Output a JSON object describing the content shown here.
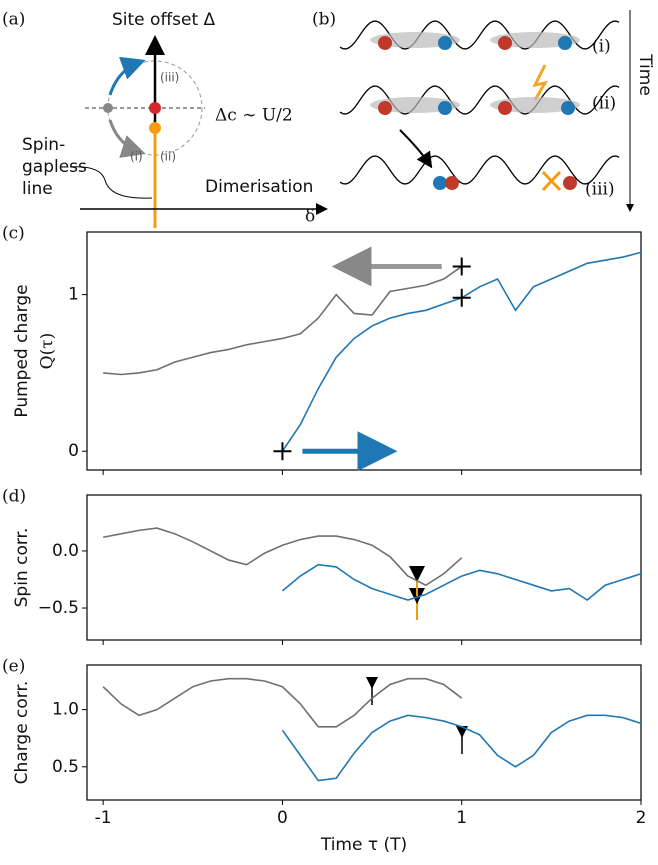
{
  "diagram_a": {
    "label": "(a)",
    "y_axis": "Site offset Δ",
    "point_iii": "(iii)",
    "delta_c": "Δc ∼ U/2",
    "line1": "Spin-",
    "line2": "gapless",
    "line3": "line",
    "point_i": "(i)",
    "point_ii": "(ii)",
    "x_axis": "Dimerisation",
    "x_symbol": "δ"
  },
  "diagram_b": {
    "label": "(b)",
    "row1": "(i)",
    "row2": "(ii)",
    "row3": "(iii)",
    "time": "Time"
  },
  "chart_data": [
    {
      "type": "line",
      "panel_label": "(c)",
      "ylabel": "Pumped charge",
      "ylabel2": "Q(τ)",
      "xlim": [
        -1.09,
        2
      ],
      "xticks": [
        -1,
        0,
        1,
        2
      ],
      "ylim": [
        -0.12,
        1.4
      ],
      "yticks": [
        0,
        1
      ],
      "series": [
        {
          "color": "#707070",
          "x": [
            -1,
            -0.9,
            -0.8,
            -0.7,
            -0.6,
            -0.5,
            -0.4,
            -0.3,
            -0.2,
            -0.1,
            0,
            0.1,
            0.2,
            0.3,
            0.4,
            0.5,
            0.6,
            0.7,
            0.8,
            0.9,
            1
          ],
          "values": [
            0.5,
            0.49,
            0.5,
            0.52,
            0.57,
            0.6,
            0.63,
            0.65,
            0.68,
            0.7,
            0.72,
            0.75,
            0.85,
            1.0,
            0.88,
            0.87,
            1.02,
            1.04,
            1.06,
            1.1,
            1.18
          ]
        },
        {
          "color": "#1f77b4",
          "x": [
            0,
            0.1,
            0.2,
            0.3,
            0.4,
            0.5,
            0.6,
            0.7,
            0.8,
            0.9,
            1,
            1.1,
            1.2,
            1.3,
            1.4,
            1.5,
            1.6,
            1.7,
            1.8,
            1.9,
            2
          ],
          "values": [
            0,
            0.17,
            0.4,
            0.6,
            0.72,
            0.8,
            0.85,
            0.88,
            0.9,
            0.94,
            0.98,
            1.05,
            1.1,
            0.9,
            1.05,
            1.1,
            1.15,
            1.2,
            1.22,
            1.24,
            1.27
          ]
        }
      ]
    },
    {
      "type": "line",
      "panel_label": "(d)",
      "ylabel": "Spin corr.",
      "xlim": [
        -1.09,
        2
      ],
      "xticks": [
        -1,
        0,
        1,
        2
      ],
      "ylim": [
        -0.78,
        0.49
      ],
      "yticks": [
        {
          "value": 0,
          "label": "0.0"
        },
        {
          "value": -0.5,
          "label": "−0.5"
        }
      ],
      "series": [
        {
          "color": "#707070",
          "x": [
            -1,
            -0.9,
            -0.8,
            -0.7,
            -0.6,
            -0.5,
            -0.4,
            -0.3,
            -0.2,
            -0.1,
            0,
            0.1,
            0.2,
            0.3,
            0.4,
            0.5,
            0.6,
            0.7,
            0.8,
            0.9,
            1
          ],
          "values": [
            0.12,
            0.15,
            0.18,
            0.2,
            0.15,
            0.08,
            0.0,
            -0.08,
            -0.12,
            -0.02,
            0.05,
            0.1,
            0.13,
            0.13,
            0.1,
            0.05,
            -0.05,
            -0.22,
            -0.3,
            -0.2,
            -0.06
          ]
        },
        {
          "color": "#1f77b4",
          "x": [
            0,
            0.1,
            0.2,
            0.3,
            0.4,
            0.5,
            0.6,
            0.7,
            0.8,
            0.9,
            1,
            1.1,
            1.2,
            1.3,
            1.4,
            1.5,
            1.6,
            1.7,
            1.8,
            1.9,
            2
          ],
          "values": [
            -0.35,
            -0.22,
            -0.12,
            -0.14,
            -0.25,
            -0.33,
            -0.38,
            -0.43,
            -0.38,
            -0.3,
            -0.22,
            -0.17,
            -0.2,
            -0.25,
            -0.3,
            -0.35,
            -0.33,
            -0.43,
            -0.3,
            -0.25,
            -0.2
          ]
        }
      ]
    },
    {
      "type": "line",
      "panel_label": "(e)",
      "ylabel": "Charge corr.",
      "xlabel": "Time τ (T)",
      "xlim": [
        -1.09,
        2
      ],
      "xticks": [
        -1,
        0,
        1,
        2
      ],
      "ylim": [
        0.21,
        1.39
      ],
      "yticks": [
        {
          "value": 1,
          "label": "1.0"
        },
        {
          "value": 0.5,
          "label": "0.5"
        }
      ],
      "series": [
        {
          "color": "#707070",
          "x": [
            -1,
            -0.9,
            -0.8,
            -0.7,
            -0.6,
            -0.5,
            -0.4,
            -0.3,
            -0.2,
            -0.1,
            0,
            0.1,
            0.2,
            0.3,
            0.4,
            0.5,
            0.6,
            0.7,
            0.8,
            0.9,
            1
          ],
          "values": [
            1.2,
            1.05,
            0.95,
            1.0,
            1.1,
            1.2,
            1.25,
            1.27,
            1.27,
            1.25,
            1.2,
            1.05,
            0.85,
            0.85,
            0.95,
            1.1,
            1.22,
            1.27,
            1.27,
            1.22,
            1.1
          ]
        },
        {
          "color": "#1f77b4",
          "x": [
            0,
            0.1,
            0.2,
            0.3,
            0.4,
            0.5,
            0.6,
            0.7,
            0.8,
            0.9,
            1,
            1.1,
            1.2,
            1.3,
            1.4,
            1.5,
            1.6,
            1.7,
            1.8,
            1.9,
            2
          ],
          "values": [
            0.82,
            0.6,
            0.38,
            0.4,
            0.62,
            0.8,
            0.9,
            0.95,
            0.93,
            0.9,
            0.85,
            0.78,
            0.6,
            0.5,
            0.6,
            0.8,
            0.9,
            0.95,
            0.95,
            0.93,
            0.88
          ]
        }
      ]
    }
  ]
}
